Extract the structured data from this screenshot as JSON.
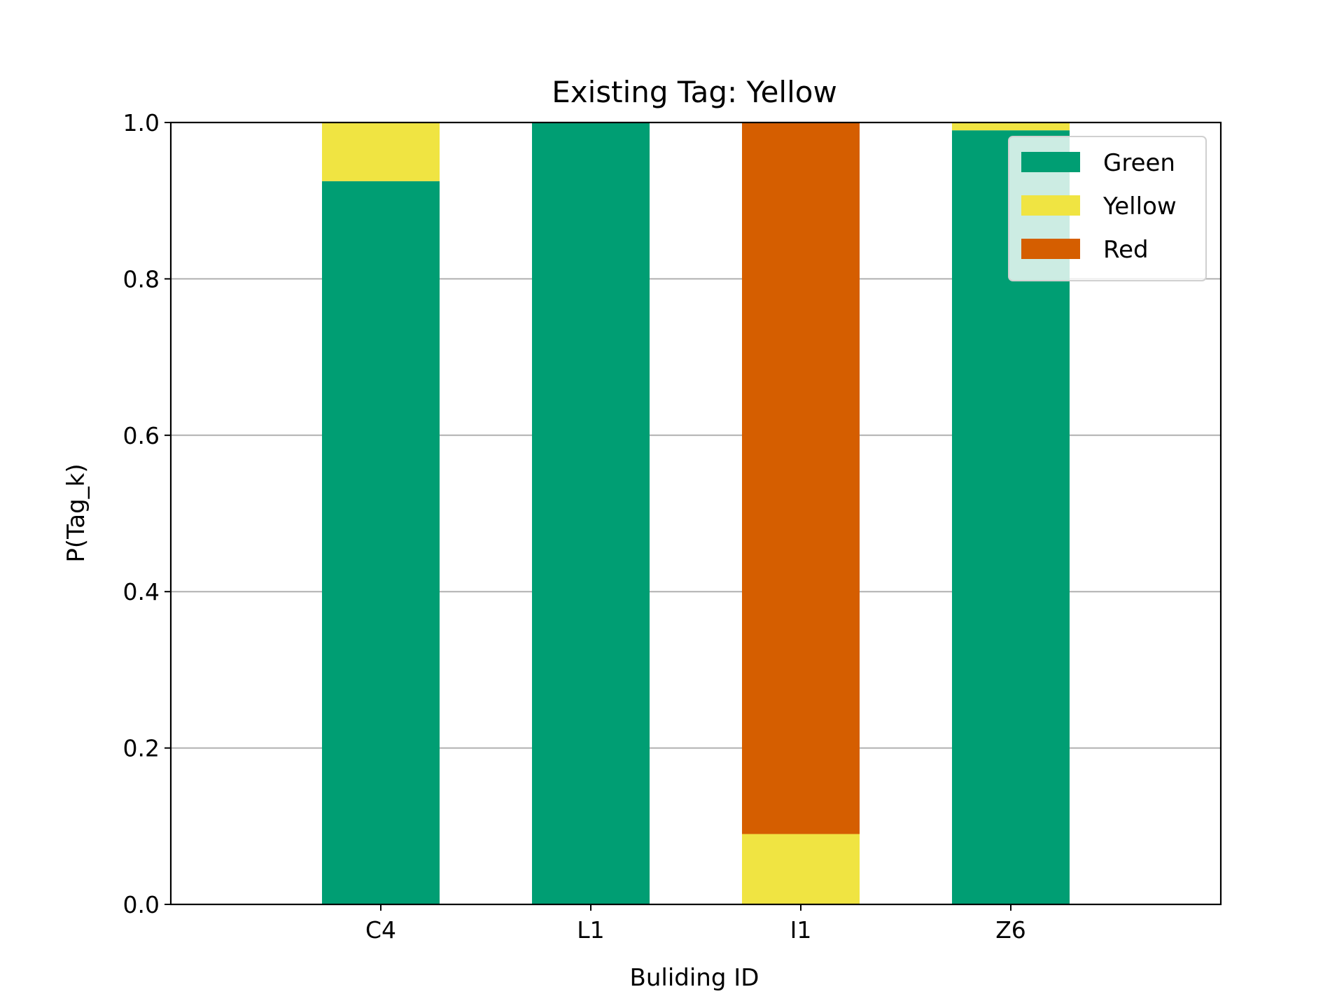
{
  "chart_data": {
    "type": "bar",
    "stacked": true,
    "title": "Existing Tag: Yellow",
    "xlabel": "Buliding ID",
    "ylabel": "P(Tag_k)",
    "categories": [
      "C4",
      "L1",
      "I1",
      "Z6"
    ],
    "series": [
      {
        "name": "Green",
        "color": "#009E73",
        "values": [
          0.925,
          1.0,
          0.0,
          0.99
        ]
      },
      {
        "name": "Yellow",
        "color": "#F0E442",
        "values": [
          0.075,
          0.0,
          0.09,
          0.01
        ]
      },
      {
        "name": "Red",
        "color": "#D55E00",
        "values": [
          0.0,
          0.0,
          0.91,
          0.0
        ]
      }
    ],
    "ylim": [
      0,
      1
    ],
    "yticks": [
      "0.0",
      "0.2",
      "0.4",
      "0.6",
      "0.8",
      "1.0"
    ],
    "grid": "y",
    "legend": "top-right"
  }
}
